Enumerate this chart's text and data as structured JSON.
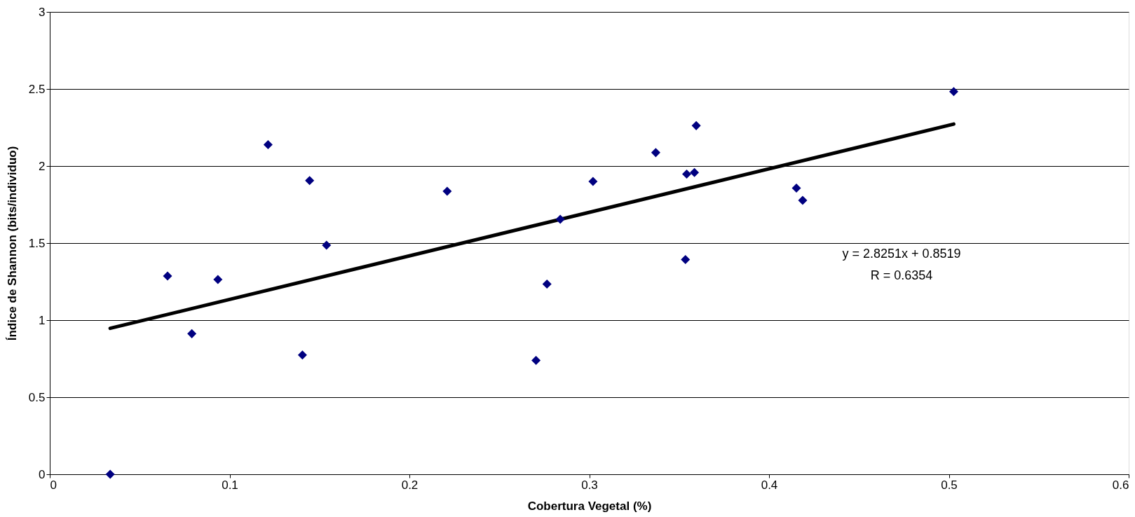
{
  "chart_data": {
    "type": "scatter",
    "xlabel": "Cobertura Vegetal (%)",
    "ylabel": "Índice de Shannon (bits/individuo)",
    "series": [
      {
        "color": "#000080",
        "marker": "diamond",
        "x": [
          0.0336,
          0.0655,
          0.079,
          0.0935,
          0.1214,
          0.1405,
          0.1445,
          0.1539,
          0.221,
          0.2704,
          0.2765,
          0.2839,
          0.3021,
          0.337,
          0.3535,
          0.3542,
          0.3585,
          0.3595,
          0.4152,
          0.4187,
          0.5027
        ],
        "values": [
          0,
          1.286,
          0.912,
          1.264,
          2.139,
          0.774,
          1.906,
          1.486,
          1.836,
          0.739,
          1.234,
          1.655,
          1.9,
          2.087,
          1.393,
          1.948,
          1.958,
          2.262,
          1.857,
          1.777,
          2.483
        ]
      },
      {
        "type": "line",
        "color": "#000000",
        "line_style": "solid",
        "x": [
          0.0336,
          0.5027
        ],
        "values": [
          0.947,
          2.272
        ]
      }
    ],
    "annotations": [
      "y = 2.8251x + 0.8519",
      "R = 0.6354"
    ],
    "xlim": [
      0,
      0.6
    ],
    "xticks": [
      0,
      0.1,
      0.2,
      0.3,
      0.4,
      0.5,
      0.6
    ],
    "ylim": [
      0,
      3
    ],
    "yticks": [
      0,
      0.5,
      1,
      1.5,
      2,
      2.5,
      3
    ],
    "grid": "y"
  }
}
